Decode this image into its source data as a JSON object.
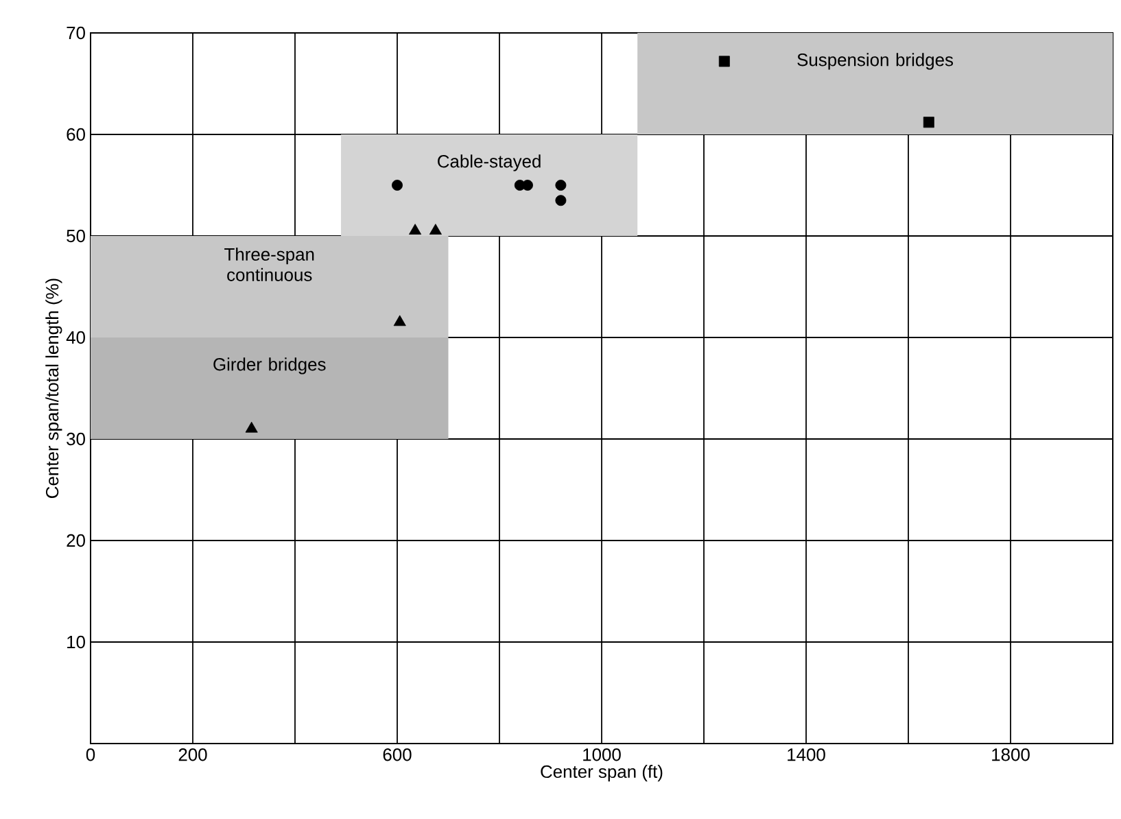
{
  "chart_data": {
    "type": "scatter",
    "xlabel": "Center span (ft)",
    "ylabel": "Center span/total length (%)",
    "xlim": [
      0,
      2000
    ],
    "ylim": [
      0,
      70
    ],
    "xticks": [
      0,
      200,
      {
        "value": 400,
        "label": null
      },
      600,
      {
        "value": 800,
        "label": null
      },
      1000,
      {
        "value": 1200,
        "label": null
      },
      1400,
      {
        "value": 1600,
        "label": null
      },
      1800
    ],
    "yticks": [
      10,
      20,
      30,
      40,
      50,
      60,
      70
    ],
    "grid": true,
    "series": [
      {
        "name": "Suspension bridges",
        "x": [
          1070,
          2000
        ],
        "values": [
          null,
          null
        ],
        "lower": [
          60,
          60
        ],
        "upper": [
          70,
          70
        ]
      },
      {
        "name": "Cable-stayed",
        "x": [
          490,
          1070
        ],
        "values": [
          null,
          null
        ],
        "lower": [
          50,
          50
        ],
        "upper": [
          60,
          60
        ]
      },
      {
        "name": "Three-span continuous",
        "x": [
          0,
          700
        ],
        "values": [
          null,
          null
        ],
        "lower": [
          40,
          40
        ],
        "upper": [
          50,
          50
        ]
      },
      {
        "name": "Girder bridges",
        "x": [
          0,
          700
        ],
        "values": [
          null,
          null
        ],
        "lower": [
          30,
          30
        ],
        "upper": [
          40,
          40
        ]
      },
      {
        "marker": "circle",
        "color": "#000000",
        "x": [
          600,
          840,
          855,
          920,
          920
        ],
        "values": [
          55,
          55,
          55,
          55,
          53.5
        ]
      },
      {
        "marker": "triangle",
        "color": "#000000",
        "x": [
          315,
          605,
          635,
          675
        ],
        "values": [
          31,
          41.5,
          50.5,
          50.5
        ]
      },
      {
        "marker": "square",
        "color": "#000000",
        "x": [
          1240,
          1640
        ],
        "values": [
          67.2,
          61.2
        ]
      }
    ]
  }
}
